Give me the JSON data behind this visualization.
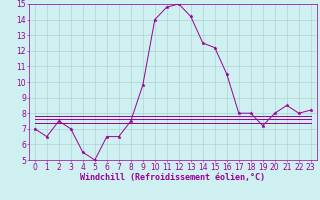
{
  "xlabel": "Windchill (Refroidissement éolien,°C)",
  "ylabel": "",
  "background_color": "#cff0f0",
  "line_color": "#990099",
  "grid_color": "#aacccc",
  "x_values": [
    0,
    1,
    2,
    3,
    4,
    5,
    6,
    7,
    8,
    9,
    10,
    11,
    12,
    13,
    14,
    15,
    16,
    17,
    18,
    19,
    20,
    21,
    22,
    23
  ],
  "y_main": [
    7.0,
    6.5,
    7.5,
    7.0,
    5.5,
    5.0,
    6.5,
    6.5,
    7.5,
    9.8,
    14.0,
    14.8,
    15.0,
    14.2,
    12.5,
    12.2,
    10.5,
    8.0,
    8.0,
    7.2,
    8.0,
    8.5,
    8.0,
    8.2
  ],
  "y_flat1": [
    7.4,
    7.4,
    7.4,
    7.4,
    7.4,
    7.4,
    7.4,
    7.4,
    7.4,
    7.4,
    7.4,
    7.4,
    7.4,
    7.4,
    7.4,
    7.4,
    7.4,
    7.4,
    7.4,
    7.4,
    7.4,
    7.4,
    7.4,
    7.4
  ],
  "y_flat2": [
    7.6,
    7.6,
    7.6,
    7.6,
    7.6,
    7.6,
    7.6,
    7.6,
    7.6,
    7.6,
    7.6,
    7.6,
    7.6,
    7.6,
    7.6,
    7.6,
    7.6,
    7.6,
    7.6,
    7.6,
    7.6,
    7.6,
    7.6,
    7.6
  ],
  "y_flat3": [
    7.8,
    7.8,
    7.8,
    7.8,
    7.8,
    7.8,
    7.8,
    7.8,
    7.8,
    7.8,
    7.8,
    7.8,
    7.8,
    7.8,
    7.8,
    7.8,
    7.8,
    7.8,
    7.8,
    7.8,
    7.8,
    7.8,
    7.8,
    7.8
  ],
  "xlim": [
    -0.5,
    23.5
  ],
  "ylim": [
    5,
    15
  ],
  "yticks": [
    5,
    6,
    7,
    8,
    9,
    10,
    11,
    12,
    13,
    14,
    15
  ],
  "xticks": [
    0,
    1,
    2,
    3,
    4,
    5,
    6,
    7,
    8,
    9,
    10,
    11,
    12,
    13,
    14,
    15,
    16,
    17,
    18,
    19,
    20,
    21,
    22,
    23
  ],
  "tick_fontsize": 5.5,
  "xlabel_fontsize": 6.0
}
